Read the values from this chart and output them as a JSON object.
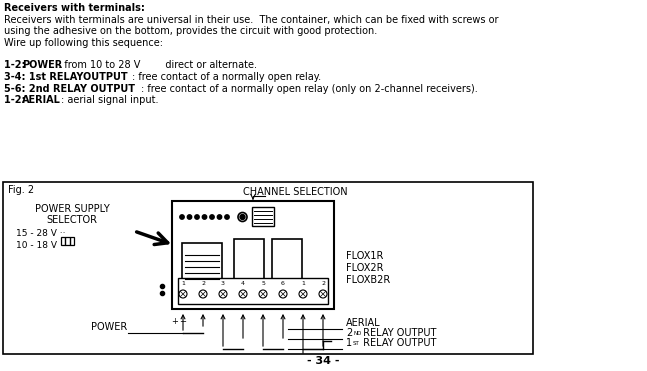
{
  "bg_color": "#ffffff",
  "fig_label": "Fig. 2",
  "channel_selection": "CHANNEL SELECTION",
  "power_supply_selector_1": "POWER SUPPLY",
  "power_supply_selector_2": "SELECTOR",
  "v1": "15 - 28 V ··",
  "v2": "10 - 18 V",
  "power_label": "POWER",
  "flox1r": "FLOX1R",
  "flox2r": "FLOX2R",
  "floxb2r": "FLOXB2R",
  "aerial": "AERIAL",
  "relay2": "2",
  "relay2_sup": "ND",
  "relay2_rest": " RELAY OUTPUT",
  "relay1": "1",
  "relay1_sup": "ST",
  "relay1_rest": " RELAY OUTPUT",
  "page": "- 34 -"
}
